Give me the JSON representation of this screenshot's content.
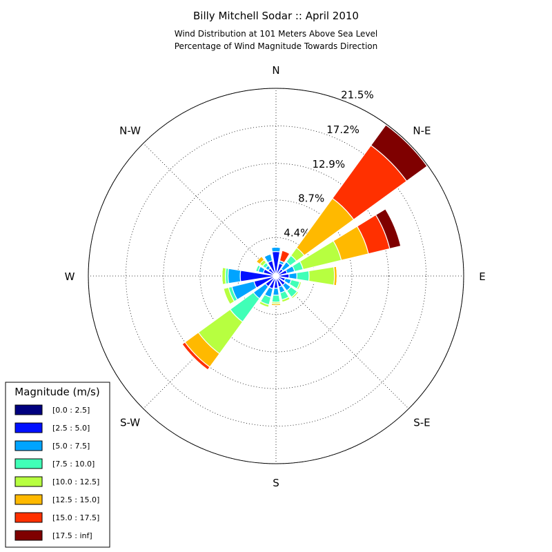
{
  "chart_data": {
    "type": "windrose",
    "title": "Billy Mitchell Sodar :: April 2010",
    "subtitle": [
      "Wind Distribution at 101 Meters Above Sea Level",
      "Percentage of Wind Magnitude Towards Direction"
    ],
    "categories": [
      "N",
      null,
      "N-E",
      null,
      "E",
      null,
      "S-E",
      null,
      "S",
      null,
      "S-W",
      null,
      "W",
      null,
      "N-W",
      null
    ],
    "ylim": [
      0,
      21.5
    ],
    "yticks": [
      {
        "value": 4.4,
        "label": "4.4%"
      },
      {
        "value": 8.7,
        "label": "8.7%"
      },
      {
        "value": 12.9,
        "label": "12.9%"
      },
      {
        "value": 17.2,
        "label": "17.2%"
      },
      {
        "value": 21.5,
        "label": "21.5%"
      }
    ],
    "grid": true,
    "legend_title": "Magnitude (m/s)",
    "legend_position": "lower-left",
    "series": [
      {
        "name": "[0.0 : 2.5]",
        "color": "#00007f",
        "values": [
          0.3,
          0.3,
          0.2,
          0.3,
          0.3,
          0.3,
          0.3,
          0.3,
          0.3,
          0.3,
          0.3,
          0.3,
          0.3,
          0.3,
          0.3,
          0.3
        ]
      },
      {
        "name": "[2.5 : 5.0]",
        "color": "#0010ff",
        "values": [
          2.5,
          1.2,
          0.8,
          1.0,
          1.2,
          0.8,
          1.0,
          1.0,
          1.1,
          1.2,
          1.2,
          2.3,
          3.8,
          1.2,
          0.8,
          1.5
        ]
      },
      {
        "name": "[5.0 : 7.5]",
        "color": "#00a4ff",
        "values": [
          0.5,
          0.3,
          1.0,
          0.9,
          0.9,
          0.7,
          0.8,
          0.7,
          0.8,
          1.0,
          1.7,
          2.6,
          1.4,
          0.6,
          0.4,
          0.8
        ]
      },
      {
        "name": "[7.5 : 10.0]",
        "color": "#40ffb7",
        "values": [
          0,
          0,
          0.9,
          1.0,
          1.4,
          1.0,
          0.9,
          0.8,
          0.8,
          0.9,
          3.3,
          0.4,
          0.3,
          0.3,
          0.4,
          0
        ]
      },
      {
        "name": "[10.0 : 12.5]",
        "color": "#b7ff40",
        "values": [
          0,
          0,
          1.1,
          4.5,
          2.9,
          0.2,
          0.2,
          0.3,
          0.2,
          0.3,
          4.5,
          0.6,
          0.4,
          0,
          0.4,
          0
        ]
      },
      {
        "name": "[12.5 : 15.0]",
        "color": "#ffb900",
        "values": [
          0,
          0,
          7.0,
          3.2,
          0.3,
          0,
          0,
          0,
          0.2,
          0,
          1.9,
          0,
          0,
          0,
          0.5,
          0
        ]
      },
      {
        "name": "[15.0 : 17.5]",
        "color": "#ff3000",
        "values": [
          0,
          1.2,
          7.5,
          2.5,
          0,
          0,
          0,
          0,
          0,
          0,
          0.4,
          0,
          0,
          0,
          0,
          0
        ]
      },
      {
        "name": "[17.5 : inf]",
        "color": "#7f0000",
        "values": [
          0,
          0,
          2.9,
          1.3,
          0,
          0,
          0,
          0,
          0,
          0,
          0,
          0,
          0,
          0,
          0,
          0
        ]
      }
    ]
  }
}
